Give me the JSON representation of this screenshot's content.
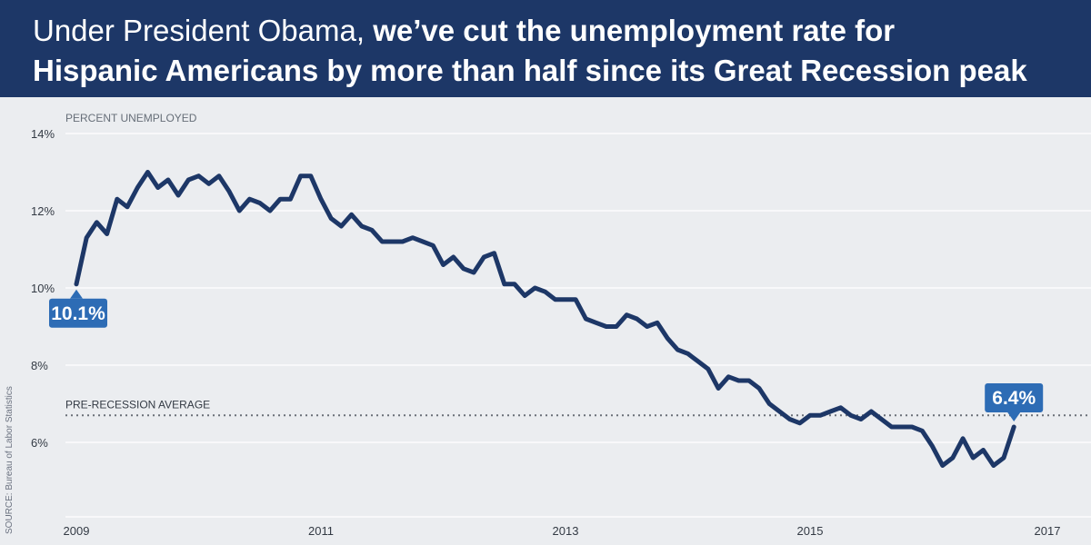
{
  "header": {
    "title_line1_light": "Under President Obama, ",
    "title_line1_bold": "we’ve cut the unemployment rate for",
    "title_line2_bold": "Hispanic Americans by more than half since its Great Recession peak"
  },
  "source": "SOURCE: Bureau of Labor Statistics",
  "colors": {
    "header_bg": "#1d3767",
    "line": "#1d3767",
    "callout": "#2d6cb5",
    "background": "#ebedf0",
    "grid": "#ffffff"
  },
  "chart_data": {
    "type": "line",
    "ylabel": "PERCENT UNEMPLOYED",
    "ylim": [
      4,
      14
    ],
    "xlim": [
      2009,
      2017
    ],
    "yticks": [
      {
        "value": 6,
        "label": "6%"
      },
      {
        "value": 8,
        "label": "8%"
      },
      {
        "value": 10,
        "label": "10%"
      },
      {
        "value": 12,
        "label": "12%"
      },
      {
        "value": 14,
        "label": "14%"
      }
    ],
    "xticks": [
      {
        "value": 2009,
        "label": "2009"
      },
      {
        "value": 2011,
        "label": "2011"
      },
      {
        "value": 2013,
        "label": "2013"
      },
      {
        "value": 2015,
        "label": "2015"
      },
      {
        "value": 2017,
        "label": "2017"
      }
    ],
    "grid": true,
    "reference_line": {
      "value": 6.7,
      "label": "PRE-RECESSION AVERAGE"
    },
    "series": [
      {
        "start_year": 2009,
        "interval": "monthly",
        "values": [
          10.1,
          11.3,
          11.7,
          11.4,
          12.3,
          12.1,
          12.6,
          13.0,
          12.6,
          12.8,
          12.4,
          12.8,
          12.9,
          12.7,
          12.9,
          12.5,
          12.0,
          12.3,
          12.2,
          12.0,
          12.3,
          12.3,
          12.9,
          12.9,
          12.3,
          11.8,
          11.6,
          11.9,
          11.6,
          11.5,
          11.2,
          11.2,
          11.2,
          11.3,
          11.2,
          11.1,
          10.6,
          10.8,
          10.5,
          10.4,
          10.8,
          10.9,
          10.1,
          10.1,
          9.8,
          10.0,
          9.9,
          9.7,
          9.7,
          9.7,
          9.2,
          9.1,
          9.0,
          9.0,
          9.3,
          9.2,
          9.0,
          9.1,
          8.7,
          8.4,
          8.3,
          8.1,
          7.9,
          7.4,
          7.7,
          7.6,
          7.6,
          7.4,
          7.0,
          6.8,
          6.6,
          6.5,
          6.7,
          6.7,
          6.8,
          6.9,
          6.7,
          6.6,
          6.8,
          6.6,
          6.4,
          6.4,
          6.4,
          6.3,
          5.9,
          5.4,
          5.6,
          6.1,
          5.6,
          5.8,
          5.4,
          5.6,
          6.4
        ]
      }
    ],
    "annotations": [
      {
        "label": "10.1%",
        "x": 2009.0,
        "y": 10.1,
        "position": "below"
      },
      {
        "label": "6.4%",
        "x": 2016.667,
        "y": 6.4,
        "position": "above"
      }
    ]
  }
}
